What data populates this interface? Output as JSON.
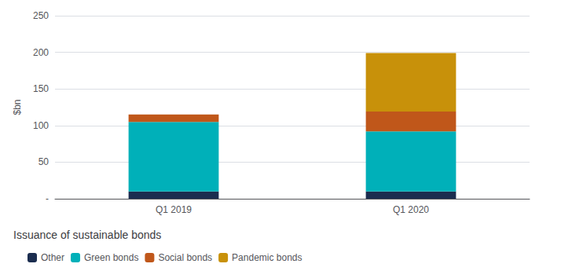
{
  "chart_data": {
    "type": "bar",
    "title": "Issuance of sustainable bonds",
    "ylabel": "$bn",
    "categories": [
      "Q1 2019",
      "Q1 2020"
    ],
    "series": [
      {
        "name": "Other",
        "color": "#1b2d4f",
        "values": [
          10,
          10
        ]
      },
      {
        "name": "Green bonds",
        "color": "#00b0b9",
        "values": [
          95,
          82
        ]
      },
      {
        "name": "Social bonds",
        "color": "#c0571a",
        "values": [
          10,
          27
        ]
      },
      {
        "name": "Pandemic bonds",
        "color": "#c8910a",
        "values": [
          0,
          80
        ]
      }
    ],
    "ylim": [
      0,
      250
    ],
    "yticks": [
      {
        "value": 0,
        "label": "-"
      },
      50,
      100,
      150,
      200,
      250
    ],
    "stacked": true,
    "grid": true,
    "legend": "lower left"
  }
}
